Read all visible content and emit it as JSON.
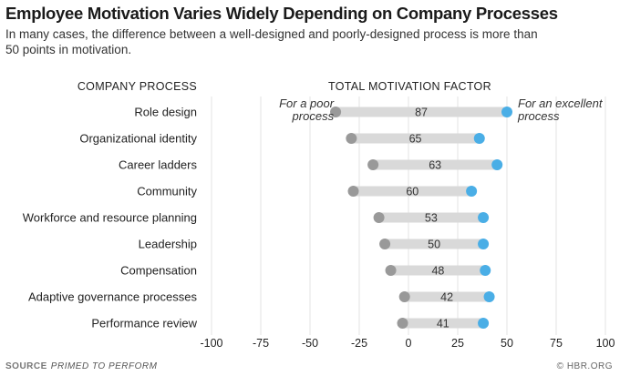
{
  "header": {
    "title": "Employee Motivation Varies Widely Depending on Company Processes",
    "subtitle": "In many cases, the difference between a well-designed and poorly-designed process is more than 50 points in motivation.",
    "col_left": "COMPANY PROCESS",
    "col_right": "TOTAL MOTIVATION FACTOR"
  },
  "annotations": {
    "poor": "For a poor process",
    "excellent": "For an excellent process"
  },
  "footer": {
    "source_label": "SOURCE",
    "source_text": "PRIMED TO PERFORM",
    "credit": "© HBR.ORG"
  },
  "colors": {
    "poor_dot": "#999999",
    "excellent_dot": "#4aaee6",
    "bar": "#d9d9d9",
    "grid": "#e3e3e3"
  },
  "chart_data": {
    "type": "dumbbell",
    "title": "Employee Motivation Varies Widely Depending on Company Processes",
    "xlim": [
      -100,
      100
    ],
    "xticks": [
      -100,
      -75,
      -50,
      -25,
      0,
      25,
      50,
      75,
      100
    ],
    "grid": true,
    "categories": [
      "Role design",
      "Organizational identity",
      "Career ladders",
      "Community",
      "Workforce and resource planning",
      "Leadership",
      "Compensation",
      "Adaptive governance processes",
      "Performance review"
    ],
    "poor": [
      -37,
      -29,
      -18,
      -28,
      -15,
      -12,
      -9,
      -2,
      -3
    ],
    "excellent": [
      50,
      36,
      45,
      32,
      38,
      38,
      39,
      41,
      38
    ],
    "difference": [
      87,
      65,
      63,
      60,
      53,
      50,
      48,
      42,
      41
    ]
  }
}
